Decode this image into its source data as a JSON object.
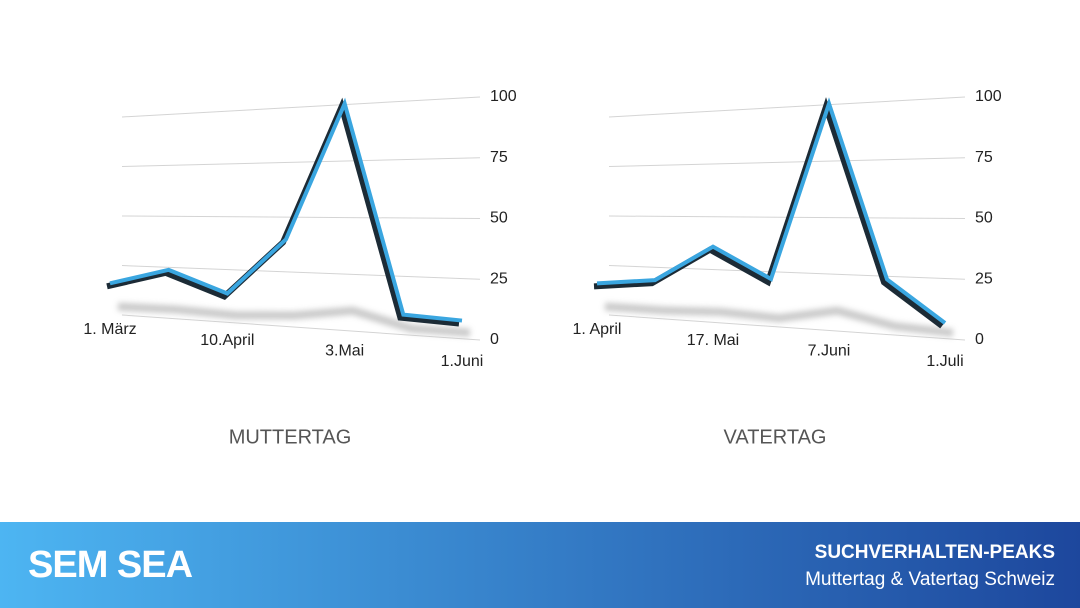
{
  "chart_data": [
    {
      "type": "line",
      "title": "MUTTERTAG",
      "categories": [
        "1. März",
        null,
        "10.April",
        null,
        "3.Mai",
        null,
        "1.Juni"
      ],
      "values": [
        16,
        24,
        14,
        40,
        100,
        9,
        8
      ],
      "color": "#3aa6e0",
      "ylim": [
        0,
        100
      ],
      "yticks": [
        0,
        25,
        50,
        75,
        100
      ],
      "grid": true
    },
    {
      "type": "line",
      "title": "VATERTAG",
      "categories": [
        "1. April",
        null,
        "17. Mai",
        null,
        "7.Juni",
        null,
        "1.Juli"
      ],
      "values": [
        16,
        19,
        36,
        22,
        100,
        24,
        7
      ],
      "color": "#3aa6e0",
      "ylim": [
        0,
        100
      ],
      "yticks": [
        0,
        25,
        50,
        75,
        100
      ],
      "grid": true
    }
  ],
  "footer": {
    "logo": "SEM SEA",
    "title": "SUCHVERHALTEN-PEAKS",
    "subtitle": "Muttertag & Vatertag Schweiz"
  }
}
